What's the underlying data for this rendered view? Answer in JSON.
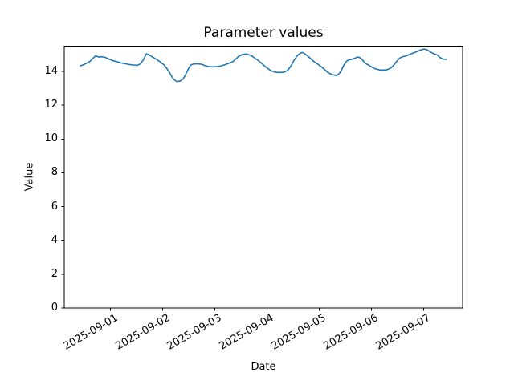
{
  "figure": {
    "background": "#ffffff",
    "frame_color": "#000000"
  },
  "chart_data": {
    "type": "line",
    "title": "Parameter values",
    "xlabel": "Date",
    "ylabel": "Value",
    "grid": false,
    "legend": null,
    "line_color": "#1f77b4",
    "line_width": 1.6,
    "x_unit": "days since 2025-09-01 00:00",
    "xlim_days": [
      -0.885,
      6.747
    ],
    "ylim": [
      0,
      15.49
    ],
    "x_ticks": [
      {
        "t": 0,
        "label": "2025-09-01"
      },
      {
        "t": 1,
        "label": "2025-09-02"
      },
      {
        "t": 2,
        "label": "2025-09-03"
      },
      {
        "t": 3,
        "label": "2025-09-04"
      },
      {
        "t": 4,
        "label": "2025-09-05"
      },
      {
        "t": 5,
        "label": "2025-09-06"
      },
      {
        "t": 6,
        "label": "2025-09-07"
      }
    ],
    "x_tick_rotation_deg": 30,
    "y_ticks": [
      0,
      2,
      4,
      6,
      8,
      10,
      12,
      14
    ],
    "series": [
      {
        "name": "parameter-values",
        "x_days": [
          -0.577,
          -0.515,
          -0.454,
          -0.392,
          -0.331,
          -0.285,
          -0.223,
          -0.162,
          -0.1,
          -0.023,
          0.054,
          0.131,
          0.208,
          0.285,
          0.362,
          0.438,
          0.515,
          0.577,
          0.638,
          0.685,
          0.731,
          0.792,
          0.869,
          0.946,
          1.023,
          1.085,
          1.131,
          1.177,
          1.223,
          1.269,
          1.331,
          1.392,
          1.438,
          1.485,
          1.531,
          1.577,
          1.654,
          1.731,
          1.808,
          1.885,
          1.962,
          2.038,
          2.115,
          2.192,
          2.269,
          2.346,
          2.408,
          2.469,
          2.531,
          2.592,
          2.654,
          2.715,
          2.777,
          2.838,
          2.9,
          2.962,
          3.023,
          3.085,
          3.146,
          3.208,
          3.269,
          3.331,
          3.392,
          3.454,
          3.515,
          3.577,
          3.638,
          3.685,
          3.731,
          3.792,
          3.854,
          3.915,
          3.977,
          4.038,
          4.1,
          4.162,
          4.223,
          4.285,
          4.331,
          4.377,
          4.423,
          4.469,
          4.515,
          4.562,
          4.623,
          4.685,
          4.731,
          4.777,
          4.823,
          4.869,
          4.915,
          4.962,
          5.008,
          5.054,
          5.115,
          5.177,
          5.238,
          5.3,
          5.362,
          5.423,
          5.485,
          5.546,
          5.608,
          5.669,
          5.731,
          5.792,
          5.854,
          5.915,
          5.977,
          6.023,
          6.069,
          6.131,
          6.192,
          6.254,
          6.315,
          6.362,
          6.408,
          6.438
        ],
        "values": [
          14.33,
          14.4,
          14.49,
          14.6,
          14.78,
          14.93,
          14.85,
          14.87,
          14.83,
          14.72,
          14.63,
          14.57,
          14.5,
          14.46,
          14.41,
          14.38,
          14.36,
          14.45,
          14.72,
          15.03,
          15.0,
          14.88,
          14.74,
          14.58,
          14.4,
          14.15,
          13.95,
          13.68,
          13.5,
          13.4,
          13.42,
          13.55,
          13.8,
          14.1,
          14.35,
          14.43,
          14.45,
          14.43,
          14.35,
          14.28,
          14.27,
          14.28,
          14.32,
          14.4,
          14.48,
          14.58,
          14.75,
          14.92,
          15.0,
          15.03,
          14.99,
          14.9,
          14.76,
          14.63,
          14.47,
          14.3,
          14.15,
          14.03,
          13.96,
          13.94,
          13.94,
          13.96,
          14.05,
          14.3,
          14.65,
          14.92,
          15.08,
          15.12,
          15.02,
          14.88,
          14.7,
          14.55,
          14.42,
          14.28,
          14.12,
          13.95,
          13.84,
          13.78,
          13.76,
          13.85,
          14.05,
          14.35,
          14.58,
          14.68,
          14.72,
          14.78,
          14.85,
          14.82,
          14.7,
          14.52,
          14.42,
          14.35,
          14.25,
          14.18,
          14.12,
          14.08,
          14.08,
          14.1,
          14.18,
          14.35,
          14.6,
          14.8,
          14.88,
          14.92,
          15.0,
          15.08,
          15.15,
          15.24,
          15.3,
          15.32,
          15.27,
          15.15,
          15.05,
          14.98,
          14.82,
          14.74,
          14.71,
          14.72
        ]
      }
    ]
  }
}
